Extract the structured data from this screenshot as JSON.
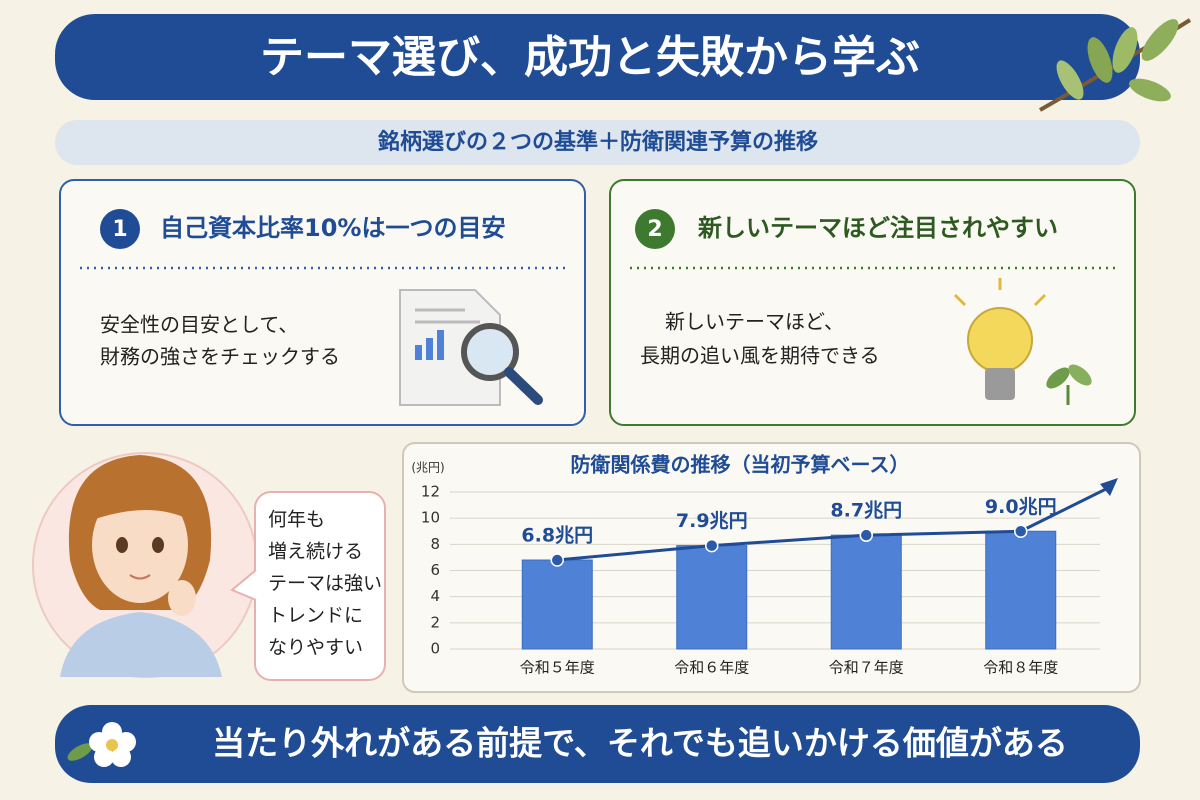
{
  "header": {
    "title": "テーマ選び、成功と失敗から学ぶ",
    "subtitle": "銘柄選びの２つの基準＋防衛関連予算の推移"
  },
  "cards": [
    {
      "number": "1",
      "title": "自己資本比率10%は一つの目安",
      "lines": [
        "安全性の目安として、",
        "財務の強さをチェックする"
      ]
    },
    {
      "number": "2",
      "title": "新しいテーマほど注目されやすい",
      "lines": [
        "新しいテーマほど、",
        "長期の追い風を期待できる"
      ]
    }
  ],
  "bubble": {
    "lines": [
      "何年も",
      "増え続ける",
      "テーマは強い",
      "トレンドに",
      "なりやすい"
    ]
  },
  "chart_data": {
    "type": "bar",
    "title": "防衛関係費の推移（当初予算ベース）",
    "y_label": "(兆円)",
    "categories": [
      "令和５年度",
      "令和６年度",
      "令和７年度",
      "令和８年度"
    ],
    "values": [
      6.8,
      7.9,
      8.7,
      9.0
    ],
    "value_labels": [
      "6.8兆円",
      "7.9兆円",
      "8.7兆円",
      "9.0兆円"
    ],
    "color": "#4f82d6",
    "ylim": [
      0,
      12
    ],
    "yticks": [
      0,
      2,
      4,
      6,
      8,
      10,
      12
    ],
    "grid": true,
    "trend_line": true
  },
  "footer": {
    "text": "当たり外れがある前提で、それでも追いかける価値がある"
  }
}
